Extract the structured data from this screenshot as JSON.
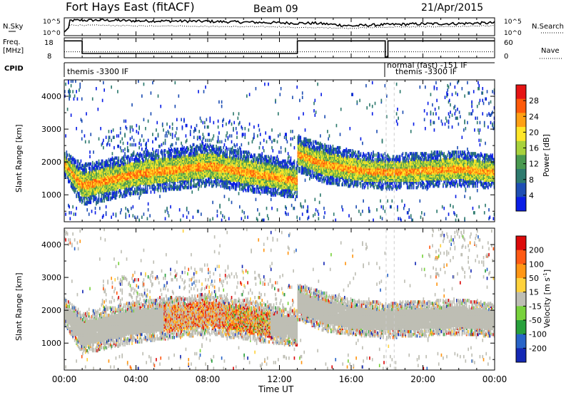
{
  "header": {
    "title": "Fort Hays East (fitACF)",
    "beam": "Beam 09",
    "date": "21/Apr/2015"
  },
  "top_panels": {
    "nsky_label": "N.Sky",
    "nsky_ticks": [
      "10^5",
      "10^0"
    ],
    "nsearch_label": "N.Search",
    "nsearch_ticks": [
      "10^5",
      "10^0"
    ],
    "freq_label": "Freq.",
    "freq_unit": "[MHz]",
    "freq_ticks": [
      "18",
      "8"
    ],
    "nave_label": "Nave",
    "nave_ticks": [
      "60",
      "0"
    ],
    "cpid_label": "CPID",
    "cpid_segments": [
      {
        "text": "themis -3300 IF",
        "start_hour": 0.0
      },
      {
        "text": "normal (fast) -151 IF",
        "start_hour": 18.0
      },
      {
        "text": "themis -3300 IF",
        "start_hour": 18.0
      }
    ]
  },
  "panels": {
    "power": {
      "ylabel": "Slant Range [km]",
      "yticks": [
        "4000",
        "3000",
        "2000",
        "1000"
      ],
      "cbar_label": "Power [dB]",
      "cbar_ticks": [
        "28",
        "24",
        "20",
        "16",
        "12",
        "8",
        "4"
      ]
    },
    "velocity": {
      "ylabel": "Slant Range [km]",
      "yticks": [
        "4000",
        "3000",
        "2000",
        "1000"
      ],
      "cbar_label_main": "Velocity [m s",
      "cbar_label_sup": "-1",
      "cbar_label_end": "]",
      "cbar_ticks": [
        "200",
        "100",
        "50",
        "15",
        "-15",
        "-50",
        "-100",
        "-200"
      ]
    }
  },
  "xaxis": {
    "label": "Time UT",
    "ticks": [
      "00:00",
      "04:00",
      "08:00",
      "12:00",
      "16:00",
      "20:00",
      "00:00"
    ]
  },
  "colors": {
    "power_scale": [
      "#0a1ee6",
      "#1f4fb4",
      "#2e7a6e",
      "#4a9a50",
      "#a8d23c",
      "#ffe628",
      "#ffa014",
      "#ff5a0a",
      "#e61414"
    ],
    "velocity_scale": [
      "#1428b4",
      "#2864c8",
      "#28a03c",
      "#78d23c",
      "#bebeb4",
      "#ffd23c",
      "#ff9614",
      "#ff5a14",
      "#dc0a0a"
    ]
  },
  "chart_data": [
    {
      "type": "line",
      "name": "N.Sky / N.Search",
      "x_range_hours": [
        0,
        24
      ],
      "x": [
        0,
        2,
        4,
        6,
        8,
        10,
        12,
        13,
        14,
        16,
        18,
        20,
        22,
        24
      ],
      "series": [
        {
          "name": "N.Sky",
          "values": [
            0.85,
            0.87,
            0.83,
            0.82,
            0.8,
            0.76,
            0.72,
            0.7,
            0.7,
            0.55,
            0.62,
            0.66,
            0.68,
            0.72
          ]
        },
        {
          "name": "N.Search",
          "values": [
            0.6,
            0.58,
            0.55,
            0.55,
            0.52,
            0.5,
            0.5,
            0.45,
            0.45,
            0.42,
            0.48,
            0.5,
            0.52,
            0.55
          ]
        }
      ]
    },
    {
      "type": "line",
      "name": "Freq / Nave",
      "x_range_hours": [
        0,
        24
      ],
      "series": [
        {
          "name": "Freq",
          "segments": [
            [
              0,
              1.0,
              17
            ],
            [
              1.0,
              13.0,
              10
            ],
            [
              13.0,
              17.9,
              17
            ],
            [
              17.9,
              18.05,
              8
            ],
            [
              18.05,
              24,
              17
            ]
          ]
        },
        {
          "name": "Nave",
          "level": 0.3
        }
      ]
    },
    {
      "type": "heatmap",
      "name": "Power",
      "x_range_hours": [
        0,
        24
      ],
      "y_range_km": [
        180,
        4500
      ],
      "colorbar": {
        "label": "Power [dB]",
        "ticks": [
          28,
          24,
          20,
          16,
          12,
          8,
          4
        ],
        "range": [
          0,
          32
        ]
      },
      "band_profile": [
        [
          0,
          1900,
          220
        ],
        [
          1,
          1250,
          350
        ],
        [
          4,
          1600,
          350
        ],
        [
          8,
          1850,
          350
        ],
        [
          11.3,
          1550,
          330
        ],
        [
          12.9,
          1400,
          300
        ],
        [
          13.0,
          2200,
          300
        ],
        [
          14.5,
          1900,
          330
        ],
        [
          16.5,
          1700,
          300
        ],
        [
          18,
          1650,
          300
        ],
        [
          20,
          1700,
          300
        ],
        [
          22,
          1750,
          300
        ],
        [
          24,
          1650,
          280
        ]
      ]
    },
    {
      "type": "heatmap",
      "name": "Velocity",
      "x_range_hours": [
        0,
        24
      ],
      "y_range_km": [
        180,
        4500
      ],
      "colorbar": {
        "label": "Velocity [m s-1]",
        "ticks": [
          200,
          100,
          50,
          15,
          -15,
          -50,
          -100,
          -200
        ],
        "range": [
          -250,
          250
        ]
      },
      "band_profile": [
        [
          0,
          1900,
          220
        ],
        [
          1,
          1250,
          350
        ],
        [
          4,
          1600,
          350
        ],
        [
          8,
          1850,
          350
        ],
        [
          11.3,
          1550,
          330
        ],
        [
          12.9,
          1400,
          300
        ],
        [
          13.0,
          2200,
          300
        ],
        [
          14.5,
          1900,
          330
        ],
        [
          16.5,
          1700,
          300
        ],
        [
          18,
          1650,
          300
        ],
        [
          20,
          1700,
          300
        ],
        [
          22,
          1750,
          300
        ],
        [
          24,
          1650,
          280
        ]
      ]
    }
  ]
}
